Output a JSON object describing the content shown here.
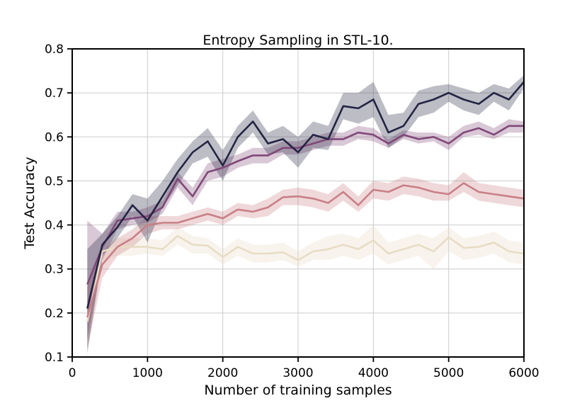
{
  "chart_data": {
    "type": "line",
    "title": "Entropy Sampling in STL-10.",
    "xlabel": "Number of training samples",
    "ylabel": "Test Accuracy",
    "xlim": [
      0,
      6000
    ],
    "ylim": [
      0.1,
      0.8
    ],
    "xticks": [
      0,
      1000,
      2000,
      3000,
      4000,
      5000,
      6000
    ],
    "yticks": [
      0.1,
      0.2,
      0.3,
      0.4,
      0.5,
      0.6,
      0.7,
      0.8
    ],
    "xtick_labels": [
      "0",
      "1000",
      "2000",
      "3000",
      "4000",
      "5000",
      "6000"
    ],
    "ytick_labels": [
      "0.1",
      "0.2",
      "0.3",
      "0.4",
      "0.5",
      "0.6",
      "0.7",
      "0.8"
    ],
    "grid": true,
    "legend": "none",
    "x": [
      200,
      400,
      600,
      800,
      1000,
      1200,
      1400,
      1600,
      1800,
      2000,
      2200,
      2400,
      2600,
      2800,
      3000,
      3200,
      3400,
      3600,
      3800,
      4000,
      4200,
      4400,
      4600,
      4800,
      5000,
      5200,
      5400,
      5600,
      5800,
      6000
    ],
    "series": [
      {
        "color": "#e8dcc4",
        "values": [
          0.18,
          0.34,
          0.35,
          0.35,
          0.35,
          0.345,
          0.375,
          0.355,
          0.353,
          0.327,
          0.35,
          0.335,
          0.335,
          0.338,
          0.32,
          0.34,
          0.345,
          0.355,
          0.345,
          0.365,
          0.335,
          0.345,
          0.355,
          0.34,
          0.372,
          0.348,
          0.35,
          0.36,
          0.34,
          0.335
        ],
        "lower": [
          0.1,
          0.32,
          0.33,
          0.33,
          0.335,
          0.33,
          0.355,
          0.335,
          0.335,
          0.31,
          0.33,
          0.315,
          0.315,
          0.32,
          0.305,
          0.32,
          0.32,
          0.33,
          0.32,
          0.335,
          0.31,
          0.32,
          0.33,
          0.3,
          0.34,
          0.32,
          0.325,
          0.335,
          0.315,
          0.31
        ],
        "upper": [
          0.26,
          0.36,
          0.37,
          0.37,
          0.37,
          0.365,
          0.395,
          0.375,
          0.37,
          0.345,
          0.37,
          0.355,
          0.355,
          0.36,
          0.34,
          0.36,
          0.375,
          0.38,
          0.37,
          0.4,
          0.36,
          0.37,
          0.38,
          0.37,
          0.395,
          0.37,
          0.375,
          0.385,
          0.365,
          0.36
        ]
      },
      {
        "color": "#c97f86",
        "values": [
          0.19,
          0.31,
          0.35,
          0.37,
          0.4,
          0.405,
          0.405,
          0.415,
          0.425,
          0.415,
          0.435,
          0.43,
          0.44,
          0.463,
          0.465,
          0.46,
          0.45,
          0.475,
          0.445,
          0.48,
          0.475,
          0.49,
          0.485,
          0.475,
          0.47,
          0.495,
          0.475,
          0.47,
          0.465,
          0.46
        ],
        "lower": [
          0.12,
          0.28,
          0.33,
          0.35,
          0.38,
          0.39,
          0.39,
          0.4,
          0.41,
          0.4,
          0.42,
          0.415,
          0.42,
          0.445,
          0.445,
          0.44,
          0.43,
          0.455,
          0.43,
          0.46,
          0.455,
          0.47,
          0.465,
          0.455,
          0.455,
          0.475,
          0.455,
          0.45,
          0.445,
          0.44
        ],
        "upper": [
          0.26,
          0.34,
          0.37,
          0.39,
          0.42,
          0.42,
          0.42,
          0.43,
          0.44,
          0.43,
          0.45,
          0.445,
          0.46,
          0.48,
          0.485,
          0.48,
          0.47,
          0.495,
          0.465,
          0.5,
          0.495,
          0.51,
          0.505,
          0.495,
          0.49,
          0.52,
          0.495,
          0.49,
          0.485,
          0.48
        ]
      },
      {
        "color": "#804878",
        "values": [
          0.265,
          0.35,
          0.41,
          0.415,
          0.42,
          0.44,
          0.505,
          0.465,
          0.52,
          0.53,
          0.545,
          0.558,
          0.558,
          0.575,
          0.575,
          0.585,
          0.595,
          0.595,
          0.61,
          0.605,
          0.585,
          0.605,
          0.595,
          0.6,
          0.585,
          0.61,
          0.62,
          0.605,
          0.625,
          0.625
        ],
        "lower": [
          0.14,
          0.32,
          0.39,
          0.4,
          0.405,
          0.425,
          0.485,
          0.445,
          0.5,
          0.51,
          0.53,
          0.54,
          0.54,
          0.56,
          0.56,
          0.57,
          0.58,
          0.58,
          0.595,
          0.59,
          0.575,
          0.595,
          0.585,
          0.59,
          0.57,
          0.6,
          0.605,
          0.595,
          0.61,
          0.61
        ],
        "upper": [
          0.41,
          0.38,
          0.43,
          0.43,
          0.44,
          0.455,
          0.52,
          0.485,
          0.54,
          0.55,
          0.56,
          0.575,
          0.575,
          0.59,
          0.59,
          0.6,
          0.61,
          0.61,
          0.625,
          0.62,
          0.595,
          0.615,
          0.61,
          0.61,
          0.6,
          0.625,
          0.635,
          0.62,
          0.64,
          0.635
        ]
      },
      {
        "color": "#232443",
        "values": [
          0.21,
          0.355,
          0.395,
          0.445,
          0.41,
          0.465,
          0.52,
          0.565,
          0.59,
          0.535,
          0.6,
          0.635,
          0.585,
          0.595,
          0.565,
          0.605,
          0.595,
          0.67,
          0.665,
          0.685,
          0.61,
          0.625,
          0.675,
          0.685,
          0.7,
          0.685,
          0.675,
          0.7,
          0.685,
          0.725
        ],
        "lower": [
          0.11,
          0.33,
          0.37,
          0.42,
          0.36,
          0.44,
          0.49,
          0.54,
          0.555,
          0.5,
          0.575,
          0.61,
          0.56,
          0.565,
          0.53,
          0.575,
          0.57,
          0.64,
          0.63,
          0.645,
          0.575,
          0.6,
          0.645,
          0.655,
          0.68,
          0.66,
          0.65,
          0.68,
          0.66,
          0.71
        ],
        "upper": [
          0.345,
          0.38,
          0.42,
          0.47,
          0.46,
          0.5,
          0.55,
          0.59,
          0.62,
          0.57,
          0.625,
          0.66,
          0.61,
          0.625,
          0.6,
          0.635,
          0.625,
          0.7,
          0.7,
          0.725,
          0.65,
          0.655,
          0.705,
          0.715,
          0.72,
          0.71,
          0.7,
          0.72,
          0.71,
          0.74
        ]
      }
    ]
  }
}
